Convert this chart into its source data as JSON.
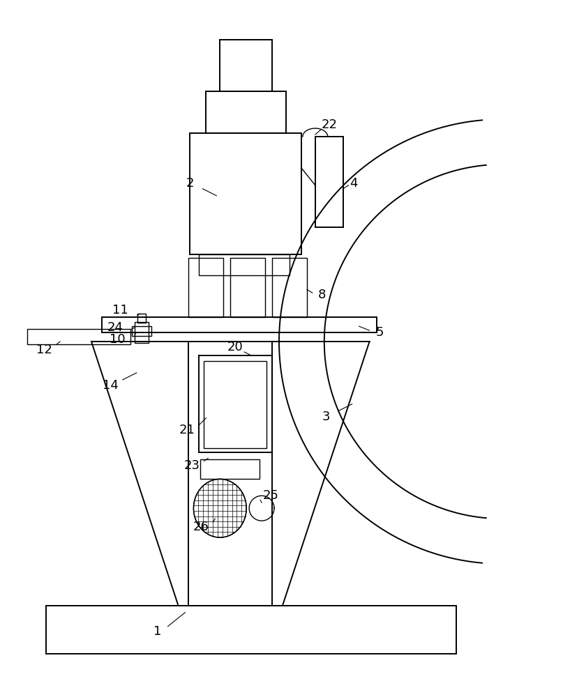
{
  "bg_color": "#ffffff",
  "line_color": "#000000",
  "fig_width": 8.07,
  "fig_height": 10.0,
  "lw_main": 1.4,
  "lw_thin": 1.0,
  "label_fontsize": 13
}
